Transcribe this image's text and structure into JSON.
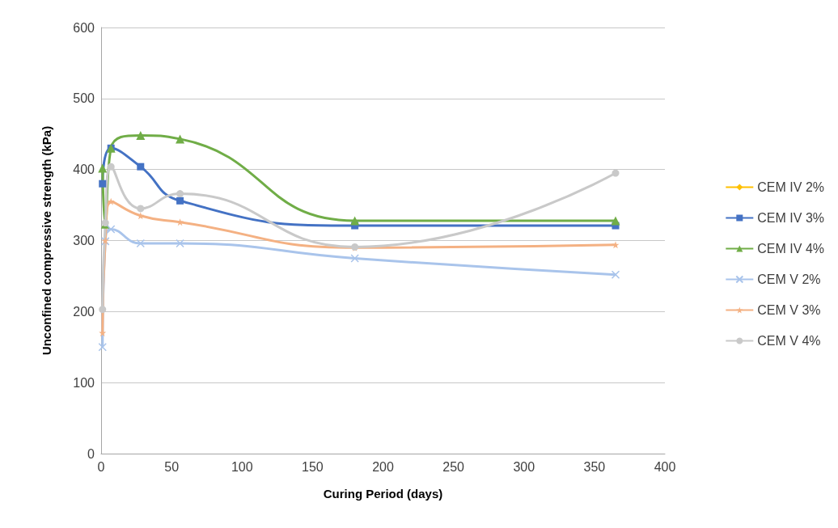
{
  "chart_data": {
    "type": "line",
    "xlabel": "Curing Period (days)",
    "ylabel": "Unconfined compressive strength (kPa)",
    "xlim": [
      0,
      400
    ],
    "xticks": [
      0,
      50,
      100,
      150,
      200,
      250,
      300,
      350,
      400
    ],
    "ylim": [
      0,
      600
    ],
    "yticks": [
      0,
      100,
      200,
      300,
      400,
      500,
      600
    ],
    "grid": "y",
    "legend": "right",
    "series": [
      {
        "name": "CEM IV 2%",
        "color": "#ffc000",
        "marker": "diamond"
      },
      {
        "name": "CEM IV 3%",
        "color": "#4472c4",
        "marker": "square",
        "x": [
          1,
          7,
          28,
          56,
          180,
          365
        ],
        "values": [
          380,
          430,
          404,
          356,
          321,
          321
        ]
      },
      {
        "name": "CEM IV 4%",
        "color": "#70ad47",
        "marker": "triangle",
        "x": [
          1,
          3,
          7,
          28,
          56,
          180,
          365
        ],
        "values": [
          402,
          323,
          430,
          448,
          443,
          328,
          328
        ]
      },
      {
        "name": "CEM V 2%",
        "color": "#a9c4eb",
        "marker": "cross",
        "x": [
          1,
          3,
          7,
          28,
          56,
          180,
          365
        ],
        "values": [
          150,
          299,
          316,
          296,
          296,
          275,
          252
        ]
      },
      {
        "name": "CEM V 3%",
        "color": "#f4b183",
        "marker": "star",
        "x": [
          1,
          3,
          7,
          28,
          56,
          180,
          365
        ],
        "values": [
          170,
          300,
          355,
          335,
          326,
          290,
          294
        ]
      },
      {
        "name": "CEM V 4%",
        "color": "#c9c9c9",
        "marker": "circle",
        "x": [
          1,
          3,
          7,
          28,
          56,
          180,
          365
        ],
        "values": [
          203,
          325,
          404,
          345,
          366,
          291,
          395
        ]
      }
    ]
  }
}
